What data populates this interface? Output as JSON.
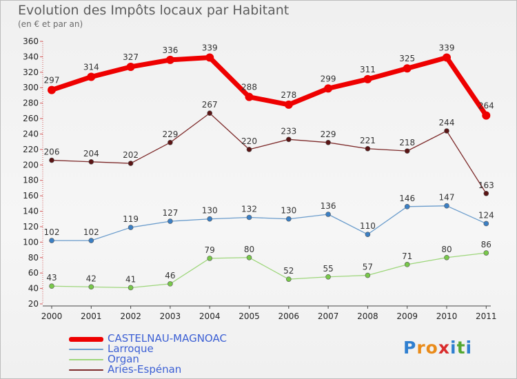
{
  "header": {
    "title": "Evolution des Impôts locaux par Habitant",
    "subtitle": "(en € et par an)"
  },
  "logo": {
    "text": "Proxiti",
    "letters": [
      {
        "ch": "P",
        "color": "#2f7fd0"
      },
      {
        "ch": "r",
        "color": "#e98b1a"
      },
      {
        "ch": "o",
        "color": "#e98b1a"
      },
      {
        "ch": "x",
        "color": "#d92c2c"
      },
      {
        "ch": "i",
        "color": "#2f7fd0"
      },
      {
        "ch": "t",
        "color": "#54a832"
      },
      {
        "ch": "i",
        "color": "#2f7fd0"
      }
    ]
  },
  "chart_data": {
    "type": "line",
    "title": "Evolution des Impôts locaux par Habitant",
    "subtitle": "(en € et par an)",
    "xlabel": "",
    "ylabel": "",
    "x": [
      "2000",
      "2001",
      "2002",
      "2003",
      "2004",
      "2005",
      "2006",
      "2007",
      "2008",
      "2009",
      "2010",
      "2011"
    ],
    "ylim": [
      20,
      360
    ],
    "yticks": [
      20,
      40,
      60,
      80,
      100,
      120,
      140,
      160,
      180,
      200,
      220,
      240,
      260,
      280,
      300,
      320,
      340,
      360
    ],
    "grid": false,
    "legend_position": "bottom-left",
    "series": [
      {
        "name": "CASTELNAU-MAGNOAC",
        "color": "#ee0000",
        "point_color": "#ee0000",
        "width": 7,
        "marker": 6,
        "values": [
          297,
          314,
          327,
          336,
          339,
          288,
          278,
          299,
          311,
          325,
          339,
          264
        ]
      },
      {
        "name": "Larroque",
        "color": "#6a9ccc",
        "point_color": "#3b7fc4",
        "width": 1.3,
        "marker": 3.5,
        "values": [
          102,
          102,
          119,
          127,
          130,
          132,
          130,
          136,
          110,
          146,
          147,
          124
        ]
      },
      {
        "name": "Organ",
        "color": "#9dd67a",
        "point_color": "#78c84a",
        "width": 1.3,
        "marker": 3.5,
        "values": [
          43,
          42,
          41,
          46,
          79,
          80,
          52,
          55,
          57,
          71,
          80,
          86
        ]
      },
      {
        "name": "Aries-Espénan",
        "color": "#7d2a2a",
        "point_color": "#5a1414",
        "width": 1.3,
        "marker": 3.5,
        "values": [
          206,
          204,
          202,
          229,
          267,
          220,
          233,
          229,
          221,
          218,
          244,
          163
        ]
      }
    ]
  }
}
